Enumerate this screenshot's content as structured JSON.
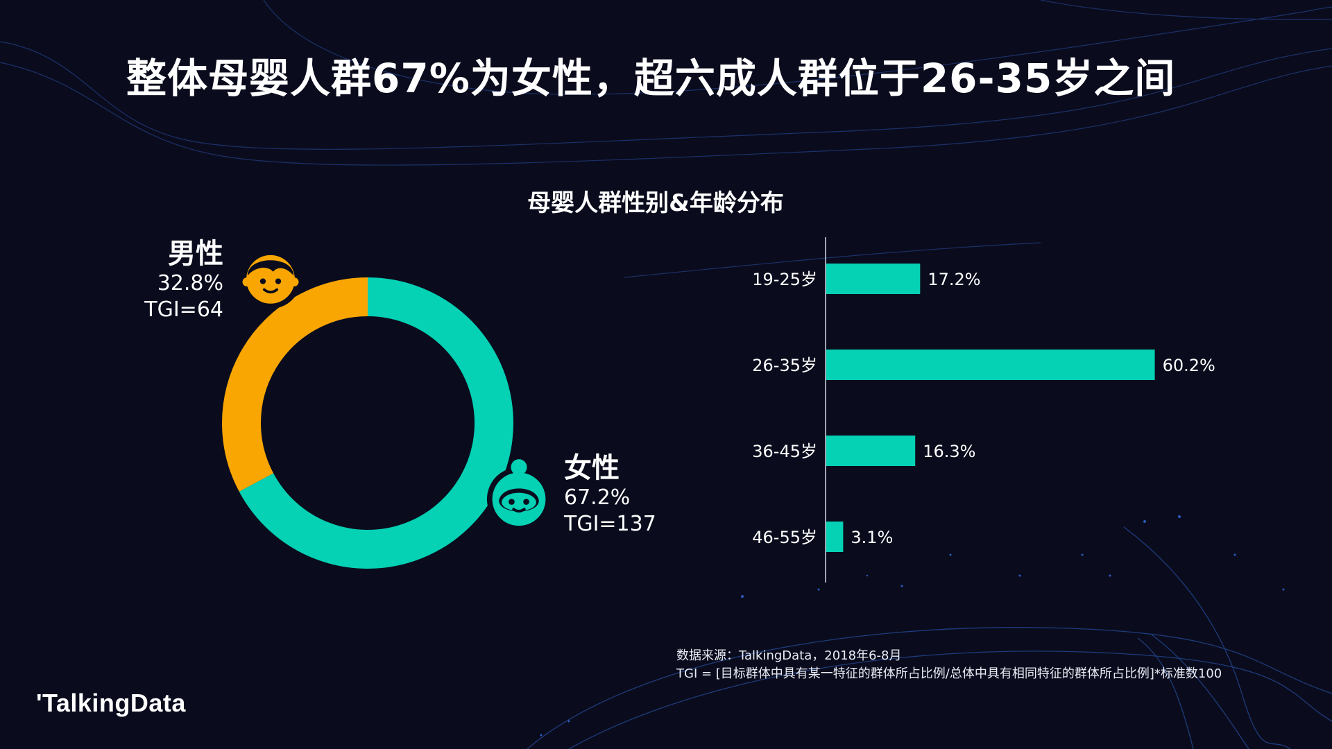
{
  "title": "整体母婴人群67%为女性，超六成人群位于26-35岁之间",
  "chart_data": [
    {
      "type": "pie",
      "title": "母婴人群性别&年龄分布",
      "categories": [
        "男性",
        "女性"
      ],
      "values": [
        32.8,
        67.2
      ],
      "labels": [
        "32.8%",
        "67.2%"
      ],
      "tgi": [
        "TGI=64",
        "TGI=137"
      ],
      "colors": [
        "#f9a602",
        "#05d1b4"
      ],
      "donut": true
    },
    {
      "type": "bar",
      "orientation": "horizontal",
      "categories": [
        "19-25岁",
        "26-35岁",
        "36-45岁",
        "46-55岁"
      ],
      "values": [
        17.2,
        60.2,
        16.3,
        3.1
      ],
      "labels": [
        "17.2%",
        "60.2%",
        "16.3%",
        "3.1%"
      ],
      "xlim": [
        0,
        75
      ],
      "color": "#05d1b4",
      "grid": false
    }
  ],
  "source": {
    "line1": "数据来源：TalkingData，2018年6-8月",
    "line2": "TGI = [目标群体中具有某一特征的群体所占比例/总体中具有相同特征的群体所占比例]*标准数100"
  },
  "logo": "'TalkingData",
  "colors": {
    "background": "#0a0c1d",
    "accent_teal": "#05d1b4",
    "accent_orange": "#f9a602"
  },
  "icons": [
    "male-face-icon",
    "female-face-icon"
  ]
}
